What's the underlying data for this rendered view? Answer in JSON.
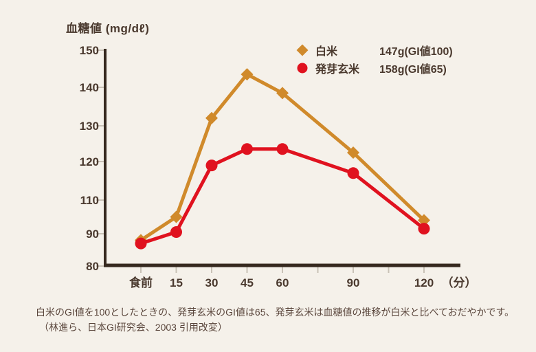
{
  "page": {
    "background": "#F5F1EA"
  },
  "chart": {
    "y_axis_title": "血糖値 (mg/dℓ)",
    "x_unit_label": "（分）",
    "y_tick_labels": [
      "150",
      "140",
      "130",
      "120",
      "110",
      "90",
      "80"
    ],
    "x_tick_labels": [
      "食前",
      "15",
      "30",
      "45",
      "60",
      "90",
      "120"
    ]
  },
  "legend": {
    "items": [
      {
        "icon": "diamond-icon",
        "color": "#D08A2B",
        "label": "白米",
        "value": "147g(GI値100)"
      },
      {
        "icon": "circle-icon",
        "color": "#E0121F",
        "label": "発芽玄米",
        "value": "158g(GI値65)"
      }
    ]
  },
  "caption": {
    "line1": "白米のGI値を100としたときの、発芽玄米のGI値は65、発芽玄米は血糖値の推移が白米と比べておだやかです。",
    "line2": "（林進ら、日本GI研究会、2003 引用改変）"
  },
  "chart_data": {
    "type": "line",
    "title": "血糖値 (mg/dℓ)",
    "ylabel": "血糖値 (mg/dℓ)",
    "x_unit": "分",
    "categories": [
      "食前",
      "15",
      "30",
      "45",
      "60",
      "90",
      "120"
    ],
    "x_minutes": [
      0,
      15,
      30,
      45,
      60,
      90,
      120
    ],
    "series": [
      {
        "id": "white-rice",
        "name": "白米",
        "amount": "147g(GI値100)",
        "color": "#D08A2B",
        "marker": "diamond",
        "values": [
          88,
          95,
          132,
          143.5,
          138.5,
          122.5,
          94
        ]
      },
      {
        "id": "germinated-brown-rice",
        "name": "発芽玄米",
        "amount": "158g(GI値65)",
        "color": "#E0121F",
        "marker": "circle",
        "values": [
          87,
          90.5,
          119,
          123.5,
          123.5,
          117,
          91.5
        ]
      }
    ],
    "y_axis": {
      "tick_labels_shown": [
        150,
        140,
        130,
        120,
        110,
        90,
        80
      ],
      "note": "the 100 label is omitted on the axis",
      "range_shown": [
        80,
        150
      ]
    },
    "x_axis": {
      "minor_unlabeled_ticks_minutes": [
        75,
        105
      ]
    },
    "legend_position": "top-right",
    "grid": false
  },
  "colors": {
    "axis": "#36291F",
    "tick": "#C9C2B7",
    "text": "#4A392E",
    "caption_text": "#5A463C"
  }
}
